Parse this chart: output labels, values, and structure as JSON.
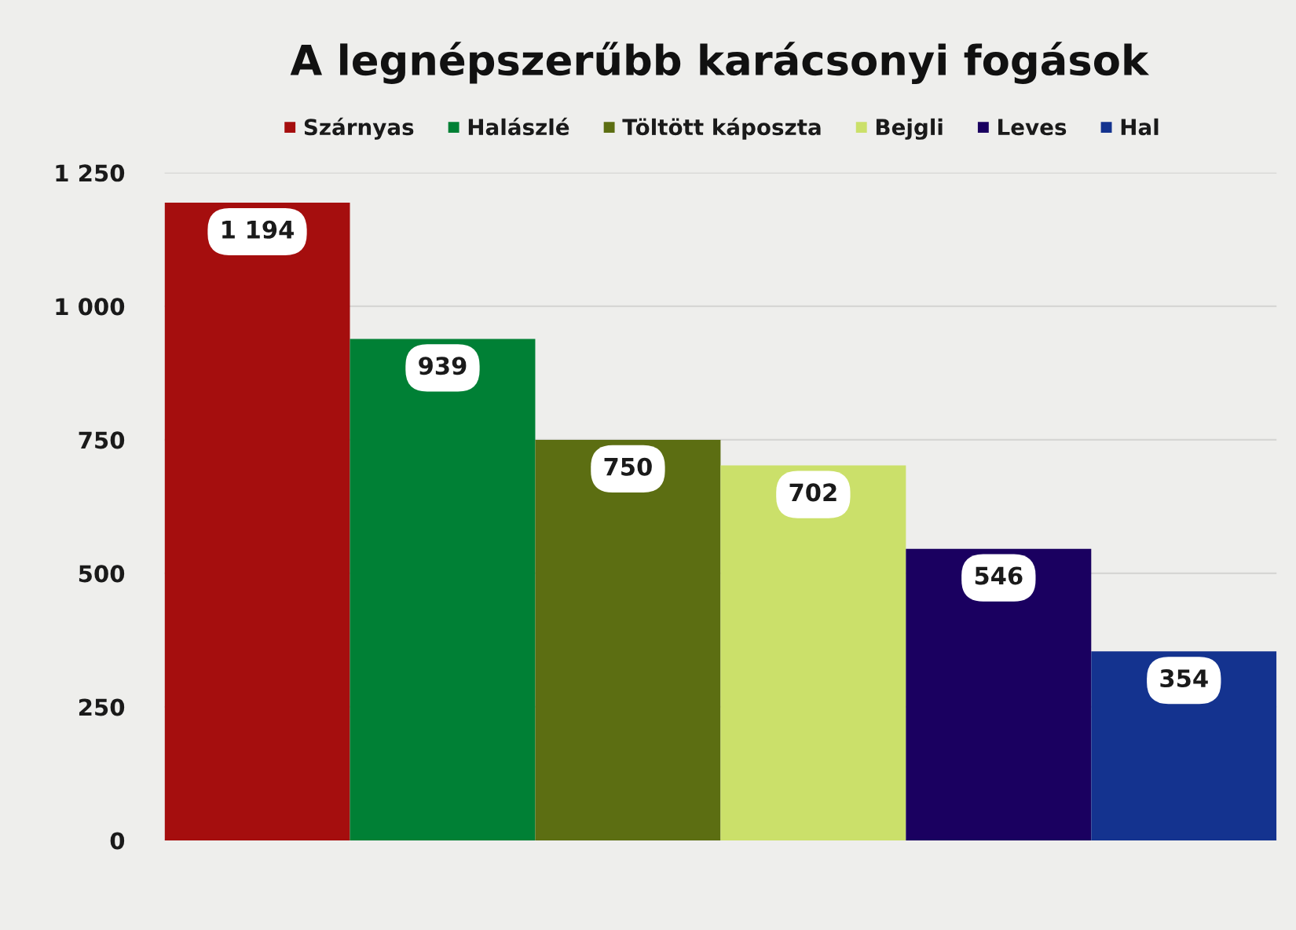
{
  "chart_data": {
    "type": "bar",
    "title": "A legnépszerűbb karácsonyi fogások",
    "categories": [
      null,
      null,
      null,
      null,
      null,
      null
    ],
    "series": [
      {
        "name": "Szárnyas",
        "color": "#a50e0e",
        "values": [
          1194,
          null,
          null,
          null,
          null,
          null
        ],
        "value_labels": [
          "1 194",
          null,
          null,
          null,
          null,
          null
        ]
      },
      {
        "name": "Halászlé",
        "color": "#008035",
        "values": [
          null,
          939,
          null,
          null,
          null,
          null
        ],
        "value_labels": [
          null,
          "939",
          null,
          null,
          null,
          null
        ]
      },
      {
        "name": "Töltött káposzta",
        "color": "#5c6e12",
        "values": [
          null,
          null,
          750,
          null,
          null,
          null
        ],
        "value_labels": [
          null,
          null,
          "750",
          null,
          null,
          null
        ]
      },
      {
        "name": "Bejgli",
        "color": "#cbe06a",
        "values": [
          null,
          null,
          null,
          702,
          null,
          null
        ],
        "value_labels": [
          null,
          null,
          null,
          "702",
          null,
          null
        ]
      },
      {
        "name": "Leves",
        "color": "#1a0060",
        "values": [
          null,
          null,
          null,
          null,
          546,
          null
        ],
        "value_labels": [
          null,
          null,
          null,
          null,
          "546",
          null
        ]
      },
      {
        "name": "Hal",
        "color": "#14338f",
        "values": [
          null,
          null,
          null,
          null,
          null,
          354
        ],
        "value_labels": [
          null,
          null,
          null,
          null,
          null,
          "354"
        ]
      }
    ],
    "ylim": [
      0,
      1250
    ],
    "yticks": [
      0,
      250,
      500,
      750,
      {
        "value": 1000,
        "label": "1 000"
      },
      {
        "value": 1250,
        "label": "1 250"
      }
    ],
    "grid": "y",
    "legend": "top",
    "tick_labels": "y"
  }
}
